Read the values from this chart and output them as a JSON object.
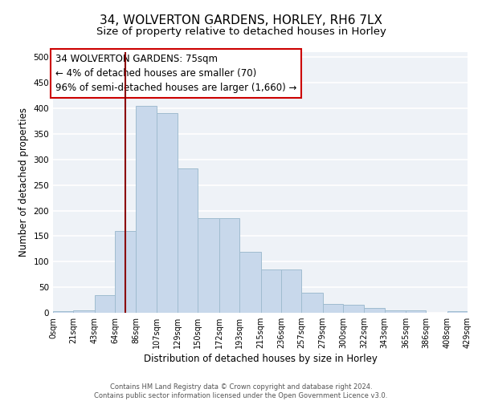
{
  "title_line1": "34, WOLVERTON GARDENS, HORLEY, RH6 7LX",
  "title_line2": "Size of property relative to detached houses in Horley",
  "xlabel": "Distribution of detached houses by size in Horley",
  "ylabel": "Number of detached properties",
  "bar_color": "#c8d8eb",
  "bar_edge_color": "#a0bcd0",
  "vline_color": "#8b0000",
  "vline_x": 75,
  "annotation_text": "34 WOLVERTON GARDENS: 75sqm\n← 4% of detached houses are smaller (70)\n96% of semi-detached houses are larger (1,660) →",
  "annotation_box_color": "#ffffff",
  "annotation_box_edge": "#cc0000",
  "bins": [
    0,
    21,
    43,
    64,
    86,
    107,
    129,
    150,
    172,
    193,
    215,
    236,
    257,
    279,
    300,
    322,
    343,
    365,
    386,
    408,
    429
  ],
  "counts": [
    3,
    5,
    35,
    160,
    405,
    390,
    283,
    185,
    185,
    120,
    85,
    85,
    40,
    18,
    15,
    10,
    5,
    5,
    0,
    3
  ],
  "ylim": [
    0,
    510
  ],
  "yticks": [
    0,
    50,
    100,
    150,
    200,
    250,
    300,
    350,
    400,
    450,
    500
  ],
  "background_color": "#eef2f7",
  "grid_color": "#ffffff",
  "footer_text": "Contains HM Land Registry data © Crown copyright and database right 2024.\nContains public sector information licensed under the Open Government Licence v3.0.",
  "title_fontsize": 11,
  "subtitle_fontsize": 9.5,
  "axis_label_fontsize": 8.5,
  "tick_fontsize": 7.5,
  "annotation_fontsize": 8.5
}
